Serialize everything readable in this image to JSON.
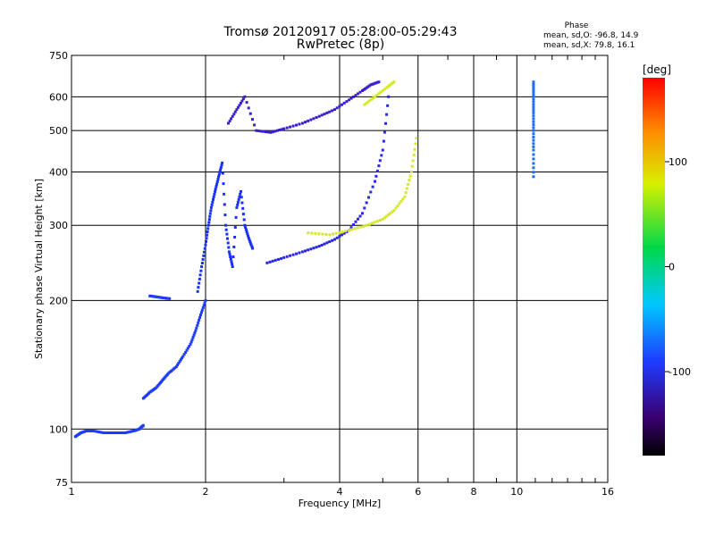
{
  "chart_data": {
    "type": "scatter",
    "title": "Tromsø 20120917 05:28:00-05:29:43",
    "subtitle": "RwPretec (8p)",
    "xlabel": "Frequency [MHz]",
    "ylabel": "Stationary phase Virtual Height [km]",
    "x_scale": "log",
    "y_scale": "log",
    "xlim": [
      1,
      16
    ],
    "ylim": [
      75,
      750
    ],
    "x_ticks": [
      1,
      2,
      4,
      6,
      8,
      10,
      16
    ],
    "x_tick_labels": [
      "1",
      "2",
      "4",
      "6",
      "8",
      "10",
      "16"
    ],
    "y_ticks": [
      75,
      100,
      200,
      300,
      400,
      500,
      600,
      750
    ],
    "y_tick_labels": [
      "75",
      "100",
      "200",
      "300",
      "400",
      "500",
      "600",
      "750"
    ],
    "grid": true,
    "stats": {
      "heading": "Phase",
      "line_o": "mean, sd,O:  -96.8, 14.9",
      "line_x": "mean, sd,X:  79.8, 16.1"
    },
    "colorbar": {
      "label": "[deg]",
      "range": [
        -180,
        180
      ],
      "ticks": [
        100,
        0,
        -100
      ],
      "tick_labels": [
        "100",
        "0",
        "-100"
      ]
    },
    "series": [
      {
        "mode": "O",
        "phase_deg": -100,
        "color": "#1e3cff",
        "x": [
          1.02,
          1.05,
          1.08,
          1.12,
          1.18,
          1.25,
          1.32,
          1.38,
          1.42,
          1.45
        ],
        "y": [
          96,
          98,
          99,
          99,
          98,
          98,
          98,
          99,
          100,
          102
        ]
      },
      {
        "mode": "O",
        "phase_deg": -100,
        "color": "#1e3cff",
        "x": [
          1.45,
          1.5,
          1.55,
          1.6,
          1.65,
          1.72,
          1.78,
          1.85,
          1.9,
          1.95,
          2.0
        ],
        "y": [
          118,
          122,
          125,
          130,
          135,
          140,
          148,
          158,
          170,
          185,
          200
        ]
      },
      {
        "mode": "O",
        "phase_deg": -100,
        "color": "#1e3cff",
        "x": [
          1.5,
          1.55,
          1.6,
          1.66
        ],
        "y": [
          205,
          204,
          203,
          202
        ]
      },
      {
        "mode": "O",
        "phase_deg": -105,
        "color": "#1830ff",
        "x": [
          1.92,
          1.96,
          2.0,
          2.03,
          2.06,
          2.1,
          2.14,
          2.18,
          2.22,
          2.26,
          2.3,
          2.35,
          2.4,
          2.45,
          2.5,
          2.55
        ],
        "y": [
          210,
          240,
          270,
          300,
          330,
          360,
          390,
          420,
          300,
          260,
          240,
          330,
          360,
          300,
          280,
          265
        ]
      },
      {
        "mode": "O",
        "phase_deg": -110,
        "color": "#2a28e6",
        "x": [
          2.75,
          3.0,
          3.3,
          3.6,
          3.9,
          4.2,
          4.5,
          4.8,
          5.0,
          5.15
        ],
        "y": [
          245,
          252,
          260,
          268,
          278,
          292,
          320,
          380,
          450,
          600
        ]
      },
      {
        "mode": "O",
        "phase_deg": -115,
        "color": "#3a20d0",
        "x": [
          2.25,
          2.35,
          2.45,
          2.6,
          2.8,
          3.0,
          3.3,
          3.6,
          3.9,
          4.2,
          4.5,
          4.7,
          4.9
        ],
        "y": [
          520,
          560,
          600,
          500,
          495,
          505,
          520,
          540,
          560,
          590,
          620,
          640,
          650
        ]
      },
      {
        "mode": "X",
        "phase_deg": 100,
        "color": "#d6e82a",
        "x": [
          3.4,
          3.8,
          4.2,
          4.6,
          5.0,
          5.3,
          5.6,
          5.8,
          5.95
        ],
        "y": [
          288,
          285,
          292,
          300,
          310,
          325,
          350,
          400,
          480
        ]
      },
      {
        "mode": "X",
        "phase_deg": 100,
        "color": "#d6e82a",
        "x": [
          4.55,
          4.8,
          5.1,
          5.3
        ],
        "y": [
          575,
          600,
          630,
          650
        ]
      },
      {
        "mode": "O",
        "phase_deg": -95,
        "color": "#1e6cff",
        "x": [
          10.9,
          10.9,
          10.9,
          10.9,
          10.9,
          10.9
        ],
        "y": [
          390,
          450,
          500,
          550,
          600,
          650
        ]
      }
    ]
  }
}
